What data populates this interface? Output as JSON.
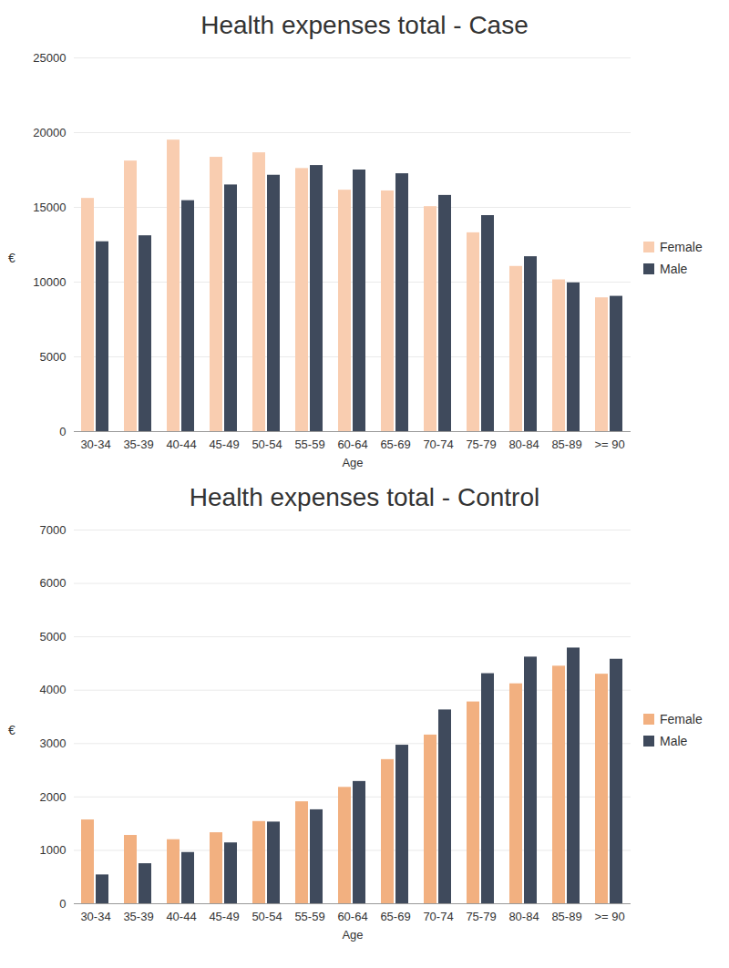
{
  "chart_data": [
    {
      "type": "bar",
      "title": "Health expenses total - Case",
      "x_label": "Age",
      "y_label": "€",
      "categories": [
        "30-34",
        "35-39",
        "40-44",
        "45-49",
        "50-54",
        "55-59",
        "60-64",
        "65-69",
        "70-74",
        "75-79",
        "80-84",
        "85-89",
        ">= 90"
      ],
      "series": [
        {
          "name": "Female",
          "color": "#f9cdb0",
          "values": [
            15600,
            18100,
            19500,
            18350,
            18650,
            17600,
            16150,
            16100,
            15050,
            13300,
            11050,
            10150,
            8950
          ]
        },
        {
          "name": "Male",
          "color": "#3f4a5c",
          "values": [
            12700,
            13100,
            15450,
            16500,
            17150,
            17800,
            17500,
            17250,
            15800,
            14450,
            11700,
            9950,
            9050
          ]
        }
      ],
      "ylim": [
        0,
        25000
      ],
      "yticks": [
        0,
        5000,
        10000,
        15000,
        20000,
        25000
      ],
      "grid": true,
      "legend": "right"
    },
    {
      "type": "bar",
      "title": "Health expenses total - Control",
      "x_label": "Age",
      "y_label": "€",
      "categories": [
        "30-34",
        "35-39",
        "40-44",
        "45-49",
        "50-54",
        "55-59",
        "60-64",
        "65-69",
        "70-74",
        "75-79",
        "80-84",
        "85-89",
        ">= 90"
      ],
      "series": [
        {
          "name": "Female",
          "color": "#f2b080",
          "values": [
            1570,
            1280,
            1200,
            1330,
            1540,
            1910,
            2180,
            2700,
            3160,
            3780,
            4120,
            4450,
            4300
          ]
        },
        {
          "name": "Male",
          "color": "#3f4a5c",
          "values": [
            540,
            750,
            960,
            1140,
            1530,
            1760,
            2290,
            2970,
            3630,
            4310,
            4620,
            4790,
            4580
          ]
        }
      ],
      "ylim": [
        0,
        7000
      ],
      "yticks": [
        0,
        1000,
        2000,
        3000,
        4000,
        5000,
        6000,
        7000
      ],
      "grid": true,
      "legend": "right"
    }
  ]
}
